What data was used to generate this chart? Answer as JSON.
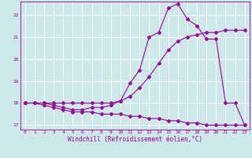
{
  "xlabel": "Windchill (Refroidissement éolien,°C)",
  "bg_color": "#cce8e8",
  "grid_color": "#ffffff",
  "line_color": "#990099",
  "marker": "D",
  "markersize": 2,
  "linewidth": 0.8,
  "xlim": [
    -0.5,
    23.5
  ],
  "ylim": [
    16.8,
    22.6
  ],
  "yticks": [
    17,
    18,
    19,
    20,
    21,
    22
  ],
  "xticks": [
    0,
    1,
    2,
    3,
    4,
    5,
    6,
    7,
    8,
    9,
    10,
    11,
    12,
    13,
    14,
    15,
    16,
    17,
    18,
    19,
    20,
    21,
    22,
    23
  ],
  "series": [
    {
      "x": [
        0,
        1,
        2,
        3,
        4,
        5,
        6,
        7,
        8,
        9,
        10,
        11,
        12,
        13,
        14,
        15,
        16,
        17,
        18,
        19,
        20,
        21,
        22,
        23
      ],
      "y": [
        18.0,
        18.0,
        17.9,
        17.8,
        17.7,
        17.6,
        17.6,
        17.6,
        17.5,
        17.5,
        17.5,
        17.4,
        17.4,
        17.3,
        17.3,
        17.2,
        17.2,
        17.1,
        17.1,
        17.0,
        17.0,
        17.0,
        17.0,
        17.0
      ]
    },
    {
      "x": [
        0,
        1,
        2,
        3,
        4,
        5,
        6,
        7,
        8,
        9,
        10,
        11,
        12,
        13,
        14,
        15,
        16,
        17,
        18,
        19,
        20,
        21,
        22,
        23
      ],
      "y": [
        18.0,
        18.0,
        18.0,
        18.0,
        18.0,
        18.0,
        18.0,
        18.0,
        18.0,
        18.0,
        18.1,
        18.3,
        18.7,
        19.2,
        19.8,
        20.4,
        20.8,
        21.0,
        21.1,
        21.2,
        21.2,
        21.3,
        21.3,
        21.3
      ]
    },
    {
      "x": [
        0,
        1,
        2,
        3,
        4,
        5,
        6,
        7,
        8,
        9,
        10,
        11,
        12,
        13,
        14,
        15,
        16,
        17,
        18,
        19,
        20,
        21,
        22,
        23
      ],
      "y": [
        18.0,
        18.0,
        18.0,
        17.9,
        17.8,
        17.7,
        17.7,
        17.8,
        17.8,
        17.9,
        18.1,
        18.9,
        19.5,
        21.0,
        21.2,
        22.3,
        22.5,
        21.8,
        21.5,
        20.9,
        20.9,
        18.0,
        18.0,
        17.0
      ]
    }
  ]
}
